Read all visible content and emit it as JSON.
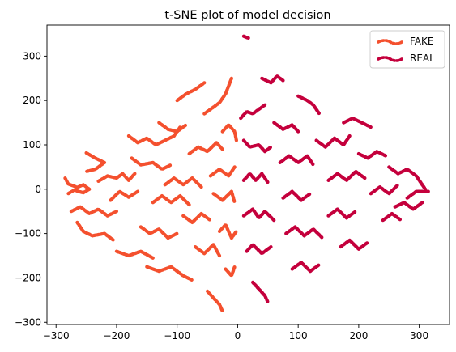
{
  "chart_data": {
    "type": "scatter",
    "title": "t-SNE plot of model decision",
    "xlabel": "",
    "ylabel": "",
    "xlim": [
      -315,
      350
    ],
    "ylim": [
      -305,
      370
    ],
    "xticks": [
      -300,
      -200,
      -100,
      0,
      100,
      200,
      300
    ],
    "xtick_labels": [
      "−300",
      "−200",
      "−100",
      "0",
      "100",
      "200",
      "300"
    ],
    "yticks": [
      -300,
      -200,
      -100,
      0,
      100,
      200,
      300
    ],
    "ytick_labels": [
      "−300",
      "−200",
      "−100",
      "0",
      "100",
      "200",
      "300"
    ],
    "grid": false,
    "legend_position": "top-right",
    "series": [
      {
        "name": "FAKE",
        "color": "#f4502e",
        "curves": [
          [
            [
              -285,
              25
            ],
            [
              -280,
              12
            ],
            [
              -265,
              4
            ],
            [
              -255,
              10
            ],
            [
              -245,
              0
            ],
            [
              -255,
              -8
            ],
            [
              -270,
              -2
            ],
            [
              -280,
              -10
            ]
          ],
          [
            [
              -275,
              -50
            ],
            [
              -260,
              -40
            ],
            [
              -245,
              -55
            ],
            [
              -230,
              -45
            ],
            [
              -215,
              -60
            ],
            [
              -200,
              -50
            ]
          ],
          [
            [
              -265,
              -75
            ],
            [
              -255,
              -95
            ],
            [
              -240,
              -105
            ],
            [
              -220,
              -100
            ],
            [
              -205,
              -115
            ]
          ],
          [
            [
              -250,
              82
            ],
            [
              -235,
              70
            ],
            [
              -220,
              60
            ],
            [
              -235,
              45
            ],
            [
              -250,
              40
            ]
          ],
          [
            [
              -230,
              18
            ],
            [
              -215,
              30
            ],
            [
              -200,
              25
            ],
            [
              -190,
              35
            ],
            [
              -180,
              20
            ],
            [
              -170,
              35
            ]
          ],
          [
            [
              -210,
              -25
            ],
            [
              -195,
              -5
            ],
            [
              -180,
              -18
            ],
            [
              -165,
              -5
            ]
          ],
          [
            [
              -200,
              -140
            ],
            [
              -180,
              -150
            ],
            [
              -160,
              -140
            ],
            [
              -140,
              -155
            ]
          ],
          [
            [
              -180,
              120
            ],
            [
              -165,
              105
            ],
            [
              -150,
              115
            ],
            [
              -135,
              100
            ],
            [
              -120,
              110
            ],
            [
              -105,
              120
            ],
            [
              -95,
              140
            ]
          ],
          [
            [
              -175,
              70
            ],
            [
              -160,
              55
            ],
            [
              -140,
              60
            ],
            [
              -125,
              45
            ],
            [
              -110,
              55
            ]
          ],
          [
            [
              -160,
              -85
            ],
            [
              -145,
              -100
            ],
            [
              -130,
              -90
            ],
            [
              -115,
              -110
            ],
            [
              -100,
              -100
            ]
          ],
          [
            [
              -150,
              -175
            ],
            [
              -130,
              -185
            ],
            [
              -110,
              -175
            ],
            [
              -90,
              -195
            ],
            [
              -75,
              -205
            ]
          ],
          [
            [
              -140,
              -30
            ],
            [
              -125,
              -15
            ],
            [
              -110,
              -30
            ],
            [
              -95,
              -15
            ],
            [
              -80,
              -35
            ]
          ],
          [
            [
              -130,
              150
            ],
            [
              -115,
              135
            ],
            [
              -100,
              130
            ],
            [
              -85,
              145
            ]
          ],
          [
            [
              -120,
              10
            ],
            [
              -105,
              25
            ],
            [
              -90,
              10
            ],
            [
              -75,
              25
            ],
            [
              -60,
              5
            ]
          ],
          [
            [
              -100,
              200
            ],
            [
              -85,
              215
            ],
            [
              -70,
              225
            ],
            [
              -55,
              240
            ]
          ],
          [
            [
              -90,
              -60
            ],
            [
              -75,
              -75
            ],
            [
              -60,
              -55
            ],
            [
              -45,
              -70
            ]
          ],
          [
            [
              -80,
              80
            ],
            [
              -65,
              95
            ],
            [
              -50,
              85
            ],
            [
              -35,
              105
            ],
            [
              -25,
              90
            ]
          ],
          [
            [
              -70,
              -130
            ],
            [
              -55,
              -145
            ],
            [
              -40,
              -125
            ],
            [
              -30,
              -150
            ]
          ],
          [
            [
              -55,
              170
            ],
            [
              -40,
              185
            ],
            [
              -30,
              195
            ],
            [
              -20,
              215
            ],
            [
              -10,
              250
            ]
          ],
          [
            [
              -50,
              -230
            ],
            [
              -40,
              -245
            ],
            [
              -30,
              -260
            ],
            [
              -25,
              -275
            ]
          ],
          [
            [
              -45,
              30
            ],
            [
              -30,
              45
            ],
            [
              -15,
              30
            ],
            [
              -5,
              50
            ]
          ],
          [
            [
              -40,
              -10
            ],
            [
              -25,
              -25
            ],
            [
              -10,
              -5
            ],
            [
              -5,
              -30
            ]
          ],
          [
            [
              -30,
              -95
            ],
            [
              -20,
              -80
            ],
            [
              -10,
              -110
            ],
            [
              -2,
              -95
            ]
          ],
          [
            [
              -25,
              130
            ],
            [
              -15,
              145
            ],
            [
              -5,
              130
            ],
            [
              -2,
              110
            ]
          ],
          [
            [
              -20,
              -180
            ],
            [
              -10,
              -195
            ],
            [
              -5,
              -175
            ]
          ]
        ]
      },
      {
        "name": "REAL",
        "color": "#c4003c",
        "curves": [
          [
            [
              10,
              345
            ],
            [
              15,
              342
            ],
            [
              20,
              340
            ]
          ],
          [
            [
              5,
              160
            ],
            [
              15,
              175
            ],
            [
              25,
              170
            ],
            [
              35,
              180
            ],
            [
              45,
              190
            ]
          ],
          [
            [
              10,
              110
            ],
            [
              20,
              95
            ],
            [
              35,
              100
            ],
            [
              45,
              85
            ],
            [
              55,
              95
            ]
          ],
          [
            [
              10,
              20
            ],
            [
              20,
              35
            ],
            [
              30,
              20
            ],
            [
              40,
              35
            ],
            [
              50,
              15
            ]
          ],
          [
            [
              10,
              -60
            ],
            [
              25,
              -45
            ],
            [
              35,
              -65
            ],
            [
              45,
              -50
            ],
            [
              60,
              -70
            ]
          ],
          [
            [
              15,
              -140
            ],
            [
              25,
              -125
            ],
            [
              40,
              -145
            ],
            [
              55,
              -130
            ]
          ],
          [
            [
              25,
              -210
            ],
            [
              35,
              -225
            ],
            [
              45,
              -240
            ],
            [
              50,
              -255
            ]
          ],
          [
            [
              40,
              250
            ],
            [
              55,
              240
            ],
            [
              65,
              255
            ],
            [
              75,
              245
            ]
          ],
          [
            [
              60,
              150
            ],
            [
              75,
              135
            ],
            [
              90,
              145
            ],
            [
              100,
              130
            ]
          ],
          [
            [
              70,
              60
            ],
            [
              85,
              75
            ],
            [
              100,
              60
            ],
            [
              115,
              75
            ],
            [
              125,
              55
            ]
          ],
          [
            [
              75,
              -20
            ],
            [
              90,
              -5
            ],
            [
              105,
              -25
            ],
            [
              120,
              -10
            ]
          ],
          [
            [
              80,
              -100
            ],
            [
              95,
              -85
            ],
            [
              110,
              -105
            ],
            [
              125,
              -90
            ],
            [
              140,
              -110
            ]
          ],
          [
            [
              90,
              -180
            ],
            [
              105,
              -165
            ],
            [
              120,
              -185
            ],
            [
              135,
              -170
            ]
          ],
          [
            [
              100,
              210
            ],
            [
              115,
              200
            ],
            [
              125,
              190
            ],
            [
              135,
              170
            ]
          ],
          [
            [
              130,
              110
            ],
            [
              145,
              95
            ],
            [
              160,
              115
            ],
            [
              175,
              100
            ],
            [
              185,
              120
            ]
          ],
          [
            [
              150,
              20
            ],
            [
              165,
              35
            ],
            [
              180,
              20
            ],
            [
              195,
              40
            ],
            [
              210,
              25
            ]
          ],
          [
            [
              150,
              -60
            ],
            [
              165,
              -45
            ],
            [
              180,
              -65
            ],
            [
              195,
              -50
            ]
          ],
          [
            [
              170,
              -130
            ],
            [
              185,
              -115
            ],
            [
              200,
              -135
            ],
            [
              215,
              -120
            ]
          ],
          [
            [
              175,
              150
            ],
            [
              190,
              160
            ],
            [
              205,
              150
            ],
            [
              220,
              140
            ]
          ],
          [
            [
              200,
              80
            ],
            [
              215,
              70
            ],
            [
              230,
              85
            ],
            [
              245,
              75
            ]
          ],
          [
            [
              220,
              -10
            ],
            [
              235,
              5
            ],
            [
              250,
              -10
            ],
            [
              265,
              10
            ]
          ],
          [
            [
              240,
              -70
            ],
            [
              255,
              -55
            ],
            [
              270,
              -70
            ]
          ],
          [
            [
              250,
              50
            ],
            [
              265,
              35
            ],
            [
              280,
              45
            ],
            [
              295,
              30
            ],
            [
              310,
              0
            ]
          ],
          [
            [
              260,
              -40
            ],
            [
              275,
              -30
            ],
            [
              290,
              -45
            ],
            [
              305,
              -30
            ]
          ],
          [
            [
              280,
              -20
            ],
            [
              295,
              -5
            ],
            [
              315,
              -5
            ]
          ]
        ]
      }
    ]
  }
}
